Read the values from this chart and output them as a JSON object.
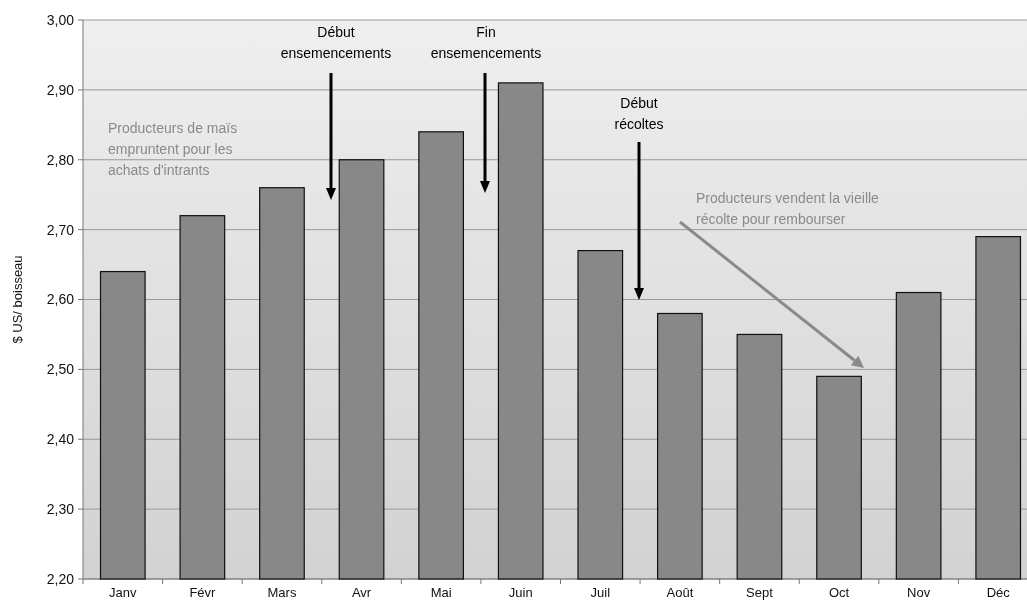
{
  "chart_data": {
    "type": "bar",
    "ylabel": "$ US/ boisseau",
    "categories": [
      "Janv",
      "Févr",
      "Mars",
      "Avr",
      "Mai",
      "Juin",
      "Juil",
      "Août",
      "Sept",
      "Oct",
      "Nov",
      "Déc"
    ],
    "values": [
      2.64,
      2.72,
      2.76,
      2.8,
      2.84,
      2.91,
      2.67,
      2.58,
      2.55,
      2.49,
      2.61,
      2.69
    ],
    "color": "#888888",
    "ylim": [
      2.2,
      3.0
    ],
    "yticks": [
      {
        "value": 2.2,
        "label": "2,20"
      },
      {
        "value": 2.3,
        "label": "2,30"
      },
      {
        "value": 2.4,
        "label": "2,40"
      },
      {
        "value": 2.5,
        "label": "2,50"
      },
      {
        "value": 2.6,
        "label": "2,60"
      },
      {
        "value": 2.7,
        "label": "2,70"
      },
      {
        "value": 2.8,
        "label": "2,80"
      },
      {
        "value": 2.9,
        "label": "2,90"
      },
      {
        "value": 3.0,
        "label": "3,00"
      }
    ],
    "grid": "y",
    "annotations": [
      "Début\nensemencements",
      "Fin\nensemencements",
      "Début\nrécoltes",
      "Producteurs de maïs\nempruntent pour les\nachats d'intrants",
      "Producteurs vendent la vieille\nrécolte pour rembourser"
    ]
  }
}
